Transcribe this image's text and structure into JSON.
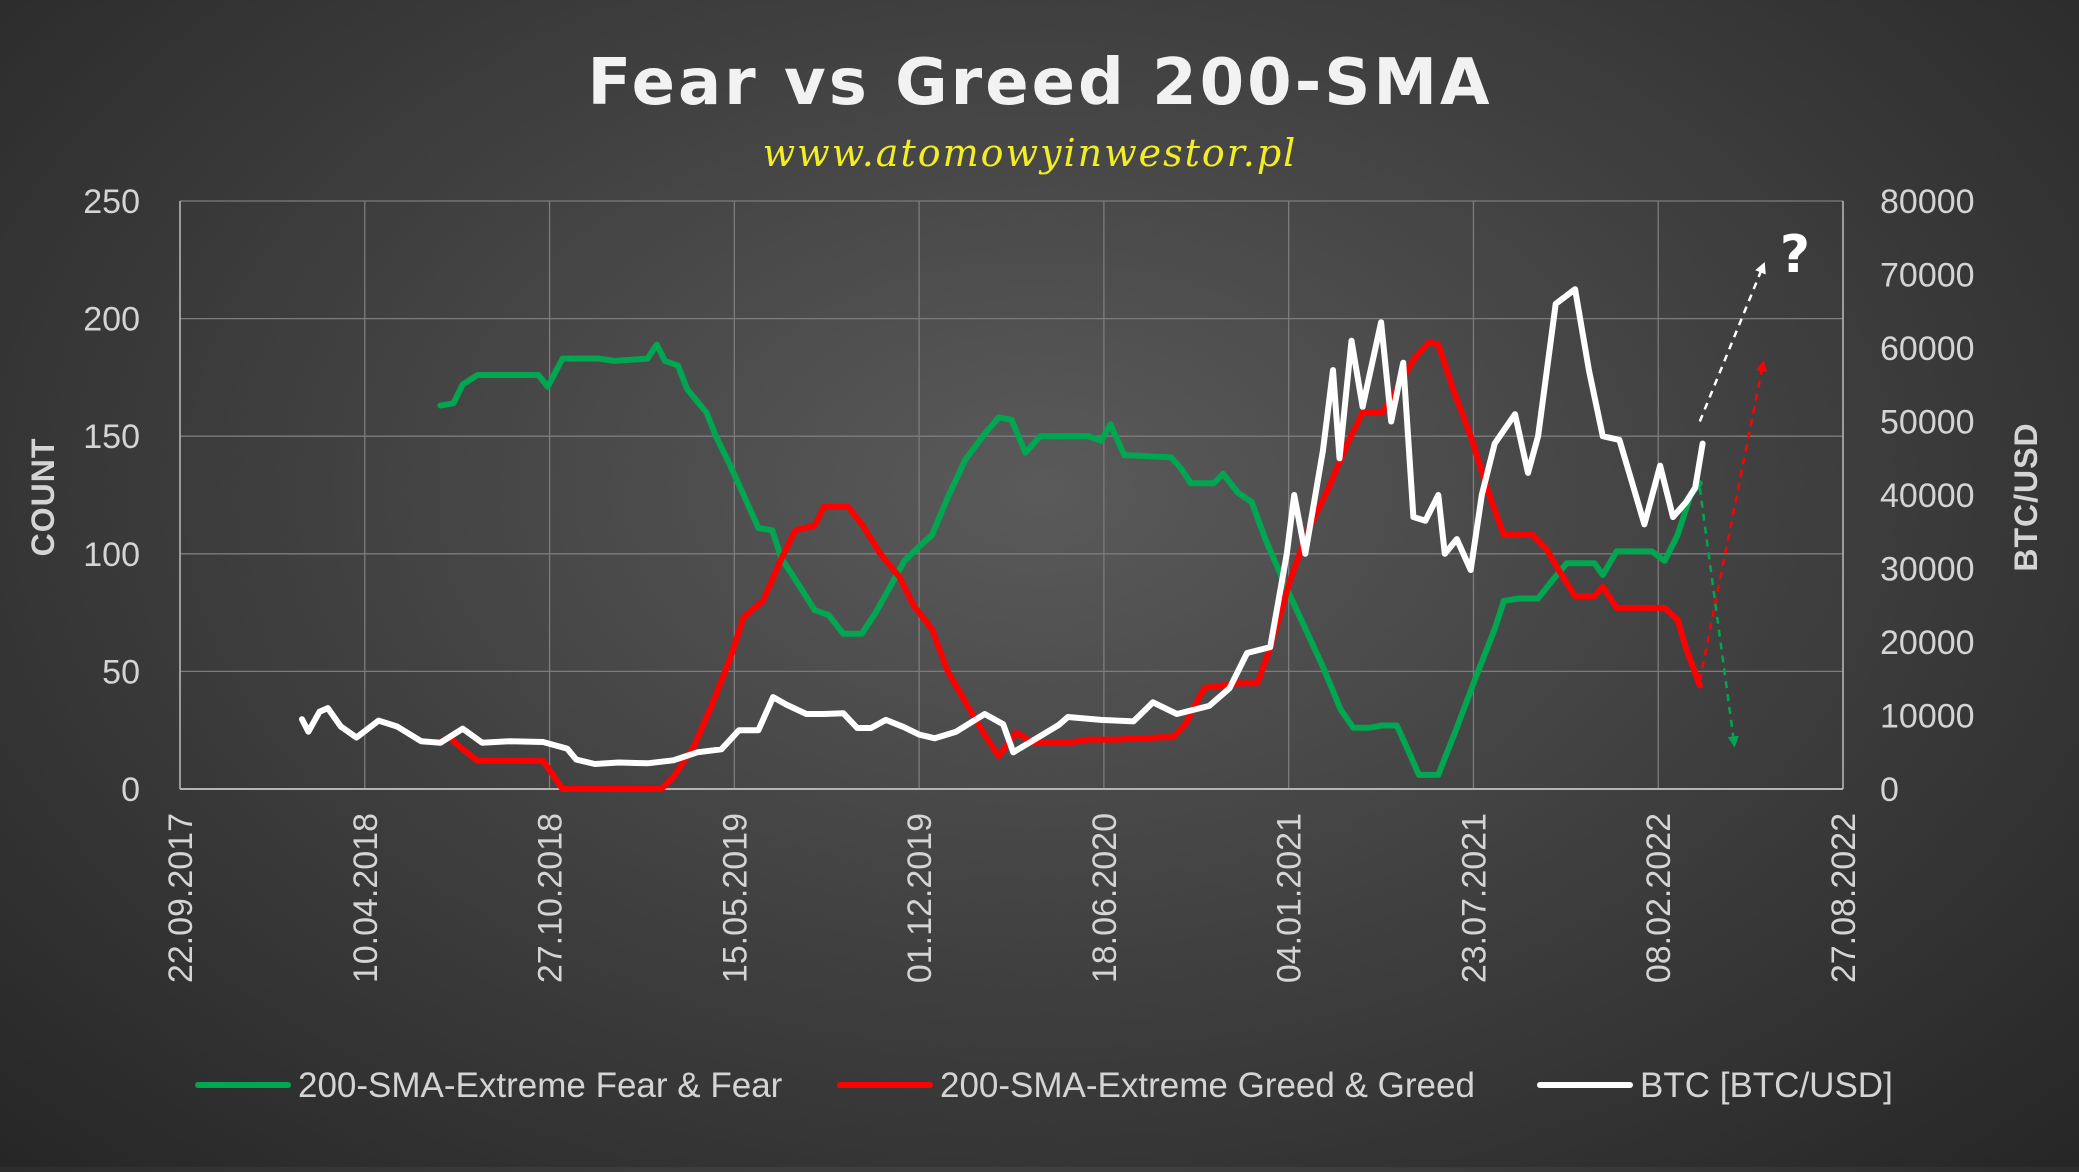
{
  "chart_data": {
    "type": "line",
    "title": "Fear vs Greed 200-SMA",
    "subtitle": "www.atomowyinwestor.pl",
    "ylabel_left": "COUNT",
    "ylabel_right": "BTC/USD",
    "ylim_left": [
      0,
      250
    ],
    "ylim_right": [
      0,
      80000
    ],
    "yticks_left": [
      "0",
      "50",
      "100",
      "150",
      "200",
      "250"
    ],
    "yticks_right": [
      "0",
      "10000",
      "20000",
      "30000",
      "40000",
      "50000",
      "60000",
      "70000",
      "80000"
    ],
    "xticks": [
      "22.09.2017",
      "10.04.2018",
      "27.10.2018",
      "15.05.2019",
      "01.12.2019",
      "18.06.2020",
      "04.01.2021",
      "23.07.2021",
      "08.02.2022",
      "27.08.2022"
    ],
    "xlim": [
      "22.09.2017",
      "27.08.2022"
    ],
    "grid": true,
    "legend_position": "bottom",
    "series": [
      {
        "name": "200-SMA-Extreme Fear & Fear",
        "color": "#00a650",
        "axis": "left",
        "points": [
          [
            "2018-07-01",
            163
          ],
          [
            "2018-07-15",
            164
          ],
          [
            "2018-07-25",
            172
          ],
          [
            "2018-08-10",
            176
          ],
          [
            "2018-10-15",
            176
          ],
          [
            "2018-10-25",
            171
          ],
          [
            "2018-11-10",
            183
          ],
          [
            "2018-12-20",
            183
          ],
          [
            "2019-01-05",
            182
          ],
          [
            "2019-02-10",
            183
          ],
          [
            "2019-02-20",
            189
          ],
          [
            "2019-03-01",
            182
          ],
          [
            "2019-03-15",
            180
          ],
          [
            "2019-03-25",
            170
          ],
          [
            "2019-04-15",
            160
          ],
          [
            "2019-04-25",
            150
          ],
          [
            "2019-05-10",
            138
          ],
          [
            "2019-05-25",
            125
          ],
          [
            "2019-06-10",
            111
          ],
          [
            "2019-06-25",
            110
          ],
          [
            "2019-07-05",
            98
          ],
          [
            "2019-07-25",
            86
          ],
          [
            "2019-08-10",
            76
          ],
          [
            "2019-08-25",
            74
          ],
          [
            "2019-09-10",
            66
          ],
          [
            "2019-09-30",
            66
          ],
          [
            "2019-10-15",
            75
          ],
          [
            "2019-11-01",
            87
          ],
          [
            "2019-11-15",
            97
          ],
          [
            "2019-12-01",
            103
          ],
          [
            "2019-12-15",
            108
          ],
          [
            "2020-01-01",
            124
          ],
          [
            "2020-01-20",
            140
          ],
          [
            "2020-02-10",
            151
          ],
          [
            "2020-02-25",
            158
          ],
          [
            "2020-03-10",
            157
          ],
          [
            "2020-03-25",
            143
          ],
          [
            "2020-04-10",
            150
          ],
          [
            "2020-06-01",
            150
          ],
          [
            "2020-06-15",
            148
          ],
          [
            "2020-06-25",
            155
          ],
          [
            "2020-07-10",
            142
          ],
          [
            "2020-08-30",
            141
          ],
          [
            "2020-09-10",
            136
          ],
          [
            "2020-09-20",
            130
          ],
          [
            "2020-10-15",
            130
          ],
          [
            "2020-10-25",
            134
          ],
          [
            "2020-11-10",
            126
          ],
          [
            "2020-11-25",
            122
          ],
          [
            "2020-12-10",
            106
          ],
          [
            "2021-01-01",
            86
          ],
          [
            "2021-01-20",
            70
          ],
          [
            "2021-02-10",
            52
          ],
          [
            "2021-03-01",
            34
          ],
          [
            "2021-03-15",
            26
          ],
          [
            "2021-04-01",
            26
          ],
          [
            "2021-04-15",
            27
          ],
          [
            "2021-05-01",
            27
          ],
          [
            "2021-05-15",
            15
          ],
          [
            "2021-05-25",
            6
          ],
          [
            "2021-06-15",
            6
          ],
          [
            "2021-07-05",
            26
          ],
          [
            "2021-07-25",
            47
          ],
          [
            "2021-08-15",
            68
          ],
          [
            "2021-08-25",
            80
          ],
          [
            "2021-09-10",
            81
          ],
          [
            "2021-10-01",
            81
          ],
          [
            "2021-10-15",
            88
          ],
          [
            "2021-11-01",
            96
          ],
          [
            "2021-12-01",
            96
          ],
          [
            "2021-12-10",
            91
          ],
          [
            "2021-12-25",
            101
          ],
          [
            "2022-02-01",
            101
          ],
          [
            "2022-02-15",
            97
          ],
          [
            "2022-03-01",
            108
          ],
          [
            "2022-03-15",
            125
          ],
          [
            "2022-03-25",
            130
          ]
        ]
      },
      {
        "name": "200-SMA-Extreme Greed & Greed",
        "color": "#ff0000",
        "axis": "left",
        "points": [
          [
            "2018-07-01",
            20
          ],
          [
            "2018-07-10",
            22
          ],
          [
            "2018-07-25",
            17
          ],
          [
            "2018-08-10",
            12
          ],
          [
            "2018-10-20",
            12
          ],
          [
            "2018-11-10",
            0
          ],
          [
            "2019-02-25",
            0
          ],
          [
            "2019-03-10",
            5
          ],
          [
            "2019-04-01",
            18
          ],
          [
            "2019-04-20",
            35
          ],
          [
            "2019-05-10",
            55
          ],
          [
            "2019-05-25",
            73
          ],
          [
            "2019-06-15",
            80
          ],
          [
            "2019-07-05",
            98
          ],
          [
            "2019-07-20",
            110
          ],
          [
            "2019-08-10",
            112
          ],
          [
            "2019-08-20",
            120
          ],
          [
            "2019-09-15",
            120
          ],
          [
            "2019-10-01",
            112
          ],
          [
            "2019-10-20",
            100
          ],
          [
            "2019-11-10",
            90
          ],
          [
            "2019-11-25",
            78
          ],
          [
            "2019-12-15",
            68
          ],
          [
            "2020-01-01",
            50
          ],
          [
            "2020-01-20",
            37
          ],
          [
            "2020-02-10",
            23
          ],
          [
            "2020-02-25",
            14
          ],
          [
            "2020-03-15",
            24
          ],
          [
            "2020-04-01",
            20
          ],
          [
            "2020-05-15",
            20
          ],
          [
            "2020-06-01",
            21
          ],
          [
            "2020-07-01",
            21
          ],
          [
            "2020-08-20",
            22
          ],
          [
            "2020-09-01",
            22
          ],
          [
            "2020-09-15",
            28
          ],
          [
            "2020-09-25",
            36
          ],
          [
            "2020-10-05",
            43
          ],
          [
            "2020-10-25",
            44
          ],
          [
            "2020-11-10",
            45
          ],
          [
            "2020-12-01",
            45
          ],
          [
            "2020-12-15",
            60
          ],
          [
            "2021-01-05",
            88
          ],
          [
            "2021-01-25",
            110
          ],
          [
            "2021-02-15",
            127
          ],
          [
            "2021-03-10",
            148
          ],
          [
            "2021-03-25",
            160
          ],
          [
            "2021-04-15",
            160
          ],
          [
            "2021-05-01",
            170
          ],
          [
            "2021-05-20",
            183
          ],
          [
            "2021-06-05",
            190
          ],
          [
            "2021-06-15",
            189
          ],
          [
            "2021-07-01",
            170
          ],
          [
            "2021-07-20",
            150
          ],
          [
            "2021-08-10",
            124
          ],
          [
            "2021-08-25",
            108
          ],
          [
            "2021-09-10",
            108
          ],
          [
            "2021-09-25",
            108
          ],
          [
            "2021-10-10",
            102
          ],
          [
            "2021-10-25",
            92
          ],
          [
            "2021-11-10",
            82
          ],
          [
            "2021-12-01",
            82
          ],
          [
            "2021-12-10",
            86
          ],
          [
            "2021-12-25",
            77
          ],
          [
            "2022-02-15",
            77
          ],
          [
            "2022-03-01",
            72
          ],
          [
            "2022-03-10",
            60
          ],
          [
            "2022-03-25",
            44
          ]
        ]
      },
      {
        "name": "BTC [BTC/USD]",
        "color": "#ffffff",
        "axis": "right",
        "points": [
          [
            "2018-02-01",
            9500
          ],
          [
            "2018-02-08",
            7800
          ],
          [
            "2018-02-20",
            10500
          ],
          [
            "2018-03-01",
            11000
          ],
          [
            "2018-03-15",
            8500
          ],
          [
            "2018-04-01",
            7000
          ],
          [
            "2018-04-25",
            9300
          ],
          [
            "2018-05-15",
            8500
          ],
          [
            "2018-06-10",
            6500
          ],
          [
            "2018-07-01",
            6300
          ],
          [
            "2018-07-25",
            8200
          ],
          [
            "2018-08-15",
            6300
          ],
          [
            "2018-09-15",
            6500
          ],
          [
            "2018-10-20",
            6400
          ],
          [
            "2018-11-15",
            5500
          ],
          [
            "2018-11-25",
            4000
          ],
          [
            "2018-12-15",
            3400
          ],
          [
            "2019-01-10",
            3600
          ],
          [
            "2019-02-10",
            3500
          ],
          [
            "2019-03-10",
            3900
          ],
          [
            "2019-04-05",
            5000
          ],
          [
            "2019-05-01",
            5400
          ],
          [
            "2019-05-20",
            8000
          ],
          [
            "2019-06-10",
            8000
          ],
          [
            "2019-06-26",
            12500
          ],
          [
            "2019-07-10",
            11500
          ],
          [
            "2019-08-01",
            10200
          ],
          [
            "2019-08-20",
            10200
          ],
          [
            "2019-09-10",
            10300
          ],
          [
            "2019-09-25",
            8300
          ],
          [
            "2019-10-10",
            8300
          ],
          [
            "2019-10-26",
            9400
          ],
          [
            "2019-11-15",
            8400
          ],
          [
            "2019-12-01",
            7400
          ],
          [
            "2019-12-18",
            6900
          ],
          [
            "2020-01-10",
            7800
          ],
          [
            "2020-02-10",
            10200
          ],
          [
            "2020-03-01",
            8800
          ],
          [
            "2020-03-12",
            5000
          ],
          [
            "2020-04-01",
            6500
          ],
          [
            "2020-04-30",
            8700
          ],
          [
            "2020-05-10",
            9800
          ],
          [
            "2020-06-15",
            9400
          ],
          [
            "2020-07-20",
            9200
          ],
          [
            "2020-08-10",
            11800
          ],
          [
            "2020-09-05",
            10200
          ],
          [
            "2020-10-10",
            11300
          ],
          [
            "2020-11-01",
            13700
          ],
          [
            "2020-11-20",
            18500
          ],
          [
            "2020-12-15",
            19300
          ],
          [
            "2021-01-02",
            32000
          ],
          [
            "2021-01-10",
            40000
          ],
          [
            "2021-01-22",
            32000
          ],
          [
            "2021-02-10",
            46000
          ],
          [
            "2021-02-21",
            57000
          ],
          [
            "2021-02-28",
            45000
          ],
          [
            "2021-03-13",
            61000
          ],
          [
            "2021-03-25",
            52000
          ],
          [
            "2021-04-14",
            63500
          ],
          [
            "2021-04-25",
            50000
          ],
          [
            "2021-05-08",
            58000
          ],
          [
            "2021-05-19",
            37000
          ],
          [
            "2021-06-01",
            36500
          ],
          [
            "2021-06-15",
            40000
          ],
          [
            "2021-06-22",
            32000
          ],
          [
            "2021-07-05",
            34000
          ],
          [
            "2021-07-20",
            29800
          ],
          [
            "2021-08-01",
            40000
          ],
          [
            "2021-08-15",
            47000
          ],
          [
            "2021-09-06",
            51000
          ],
          [
            "2021-09-20",
            43000
          ],
          [
            "2021-10-01",
            48000
          ],
          [
            "2021-10-20",
            66000
          ],
          [
            "2021-11-10",
            68000
          ],
          [
            "2021-11-25",
            57000
          ],
          [
            "2021-12-10",
            48000
          ],
          [
            "2021-12-28",
            47500
          ],
          [
            "2022-01-10",
            42000
          ],
          [
            "2022-01-24",
            36000
          ],
          [
            "2022-02-10",
            44000
          ],
          [
            "2022-02-24",
            37000
          ],
          [
            "2022-03-10",
            39000
          ],
          [
            "2022-03-20",
            41000
          ],
          [
            "2022-03-28",
            47000
          ]
        ]
      }
    ]
  },
  "annotations": {
    "question_mark": "?",
    "arrows": [
      {
        "color": "#ffffff",
        "from": [
          "2022-03-25",
          50000
        ],
        "to": [
          "2022-06-01",
          71000
        ]
      },
      {
        "color": "#ff0000",
        "from": [
          "2022-03-25",
          46
        ],
        "to": [
          "2022-06-01",
          180
        ]
      },
      {
        "color": "#00a650",
        "from": [
          "2022-03-25",
          128
        ],
        "to": [
          "2022-05-01",
          20
        ]
      }
    ]
  }
}
